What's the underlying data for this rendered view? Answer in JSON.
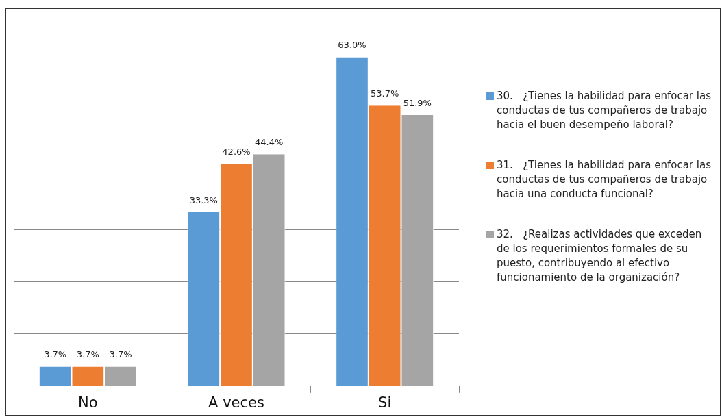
{
  "chart_data": {
    "type": "bar",
    "categories": [
      "No",
      "A veces",
      "Si"
    ],
    "series": [
      {
        "name": "30.   ¿Tienes la habilidad para enfocar las conductas de tus compañeros de trabajo hacia el buen desempeño laboral?",
        "color": "#5b9bd5",
        "values": [
          3.7,
          33.3,
          63.0
        ],
        "value_labels": [
          "3.7%",
          "33.3%",
          "63.0%"
        ]
      },
      {
        "name": "31.   ¿Tienes la habilidad para enfocar las conductas de tus compañeros de trabajo hacia una conducta funcional?",
        "color": "#ed7d31",
        "values": [
          3.7,
          42.6,
          53.7
        ],
        "value_labels": [
          "3.7%",
          "42.6%",
          "53.7%"
        ]
      },
      {
        "name": "32.   ¿Realizas actividades que exceden de los requerimientos formales de su puesto, contribuyendo al efectivo funcionamiento de la organización?",
        "color": "#a5a5a5",
        "values": [
          3.7,
          44.4,
          51.9
        ],
        "value_labels": [
          "3.7%",
          "44.4%",
          "51.9%"
        ]
      }
    ],
    "ylim": [
      0,
      70
    ],
    "yticks": [
      {
        "value": 0,
        "label": null
      },
      {
        "value": 10,
        "label": null
      },
      {
        "value": 20,
        "label": null
      },
      {
        "value": 30,
        "label": null
      },
      {
        "value": 40,
        "label": null
      },
      {
        "value": 50,
        "label": null
      },
      {
        "value": 60,
        "label": null
      },
      {
        "value": 70,
        "label": null
      }
    ],
    "grid": "y",
    "legend": "right"
  }
}
